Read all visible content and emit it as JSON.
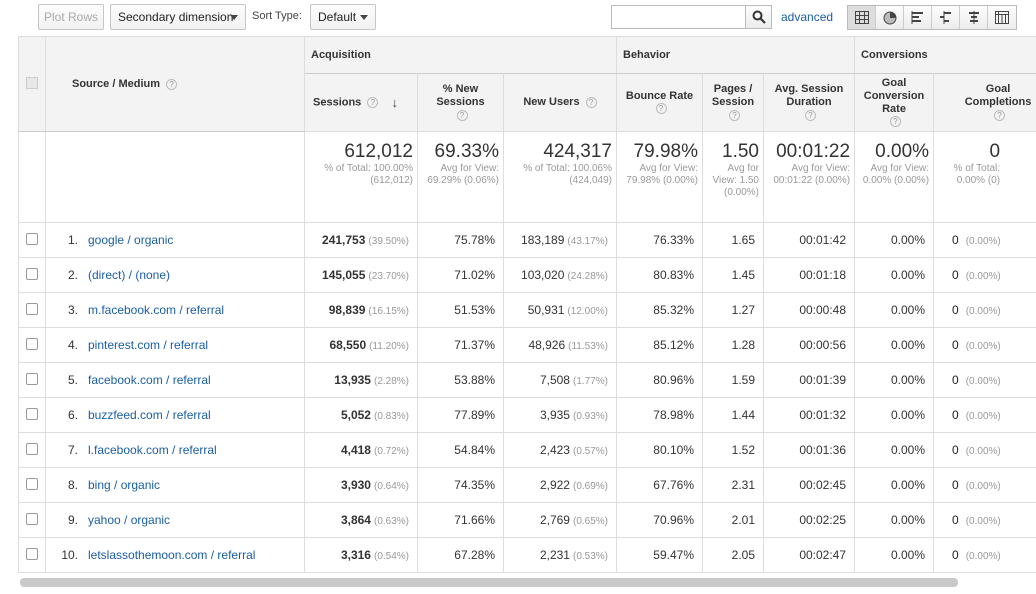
{
  "toolbar": {
    "plot_rows": "Plot Rows",
    "secondary_dimension": "Secondary dimension",
    "sort_type_label": "Sort Type:",
    "sort_type_value": "Default",
    "search_value": "",
    "advanced": "advanced",
    "view_icons": [
      "table-view-icon",
      "pie-view-icon",
      "performance-view-icon",
      "comparison-view-icon",
      "term-cloud-view-icon",
      "pivot-view-icon"
    ]
  },
  "table": {
    "groups": {
      "acquisition": "Acquisition",
      "behavior": "Behavior",
      "conversions": "Conversions"
    },
    "headers": {
      "dimension": "Source / Medium",
      "sessions": "Sessions",
      "new_sessions": "% New Sessions",
      "new_users": "New Users",
      "bounce_rate": "Bounce Rate",
      "pages_session": "Pages / Session",
      "avg_duration": "Avg. Session Duration",
      "goal_conv_rate": "Goal Conversion Rate",
      "goal_completions": "Goal Completions"
    },
    "totals": {
      "sessions": {
        "value": "612,012",
        "sub": "% of Total: 100.00% (612,012)"
      },
      "new_sessions": {
        "value": "69.33%",
        "sub": "Avg for View: 69.29% (0.06%)"
      },
      "new_users": {
        "value": "424,317",
        "sub": "% of Total: 100.06% (424,049)"
      },
      "bounce_rate": {
        "value": "79.98%",
        "sub": "Avg for View: 79.98% (0.00%)"
      },
      "pages_session": {
        "value": "1.50",
        "sub": "Avg for View: 1.50 (0.00%)"
      },
      "avg_duration": {
        "value": "00:01:22",
        "sub": "Avg for View: 00:01:22 (0.00%)"
      },
      "goal_conv_rate": {
        "value": "0.00%",
        "sub": "Avg for View: 0.00% (0.00%)"
      },
      "goal_completions": {
        "value": "0",
        "sub": "% of Total: 0.00% (0)"
      }
    },
    "rows": [
      {
        "idx": "1.",
        "source": "google / organic",
        "sessions": "241,753",
        "sessions_pct": "(39.50%)",
        "new_sessions": "75.78%",
        "new_users": "183,189",
        "new_users_pct": "(43.17%)",
        "bounce": "76.33%",
        "pages": "1.65",
        "duration": "00:01:42",
        "gcr": "0.00%",
        "gc": "0",
        "gc_pct": "(0.00%)"
      },
      {
        "idx": "2.",
        "source": "(direct) / (none)",
        "sessions": "145,055",
        "sessions_pct": "(23.70%)",
        "new_sessions": "71.02%",
        "new_users": "103,020",
        "new_users_pct": "(24.28%)",
        "bounce": "80.83%",
        "pages": "1.45",
        "duration": "00:01:18",
        "gcr": "0.00%",
        "gc": "0",
        "gc_pct": "(0.00%)"
      },
      {
        "idx": "3.",
        "source": "m.facebook.com / referral",
        "sessions": "98,839",
        "sessions_pct": "(16.15%)",
        "new_sessions": "51.53%",
        "new_users": "50,931",
        "new_users_pct": "(12.00%)",
        "bounce": "85.32%",
        "pages": "1.27",
        "duration": "00:00:48",
        "gcr": "0.00%",
        "gc": "0",
        "gc_pct": "(0.00%)"
      },
      {
        "idx": "4.",
        "source": "pinterest.com / referral",
        "sessions": "68,550",
        "sessions_pct": "(11.20%)",
        "new_sessions": "71.37%",
        "new_users": "48,926",
        "new_users_pct": "(11.53%)",
        "bounce": "85.12%",
        "pages": "1.28",
        "duration": "00:00:56",
        "gcr": "0.00%",
        "gc": "0",
        "gc_pct": "(0.00%)"
      },
      {
        "idx": "5.",
        "source": "facebook.com / referral",
        "sessions": "13,935",
        "sessions_pct": "(2.28%)",
        "new_sessions": "53.88%",
        "new_users": "7,508",
        "new_users_pct": "(1.77%)",
        "bounce": "80.96%",
        "pages": "1.59",
        "duration": "00:01:39",
        "gcr": "0.00%",
        "gc": "0",
        "gc_pct": "(0.00%)"
      },
      {
        "idx": "6.",
        "source": "buzzfeed.com / referral",
        "sessions": "5,052",
        "sessions_pct": "(0.83%)",
        "new_sessions": "77.89%",
        "new_users": "3,935",
        "new_users_pct": "(0.93%)",
        "bounce": "78.98%",
        "pages": "1.44",
        "duration": "00:01:32",
        "gcr": "0.00%",
        "gc": "0",
        "gc_pct": "(0.00%)"
      },
      {
        "idx": "7.",
        "source": "l.facebook.com / referral",
        "sessions": "4,418",
        "sessions_pct": "(0.72%)",
        "new_sessions": "54.84%",
        "new_users": "2,423",
        "new_users_pct": "(0.57%)",
        "bounce": "80.10%",
        "pages": "1.52",
        "duration": "00:01:36",
        "gcr": "0.00%",
        "gc": "0",
        "gc_pct": "(0.00%)"
      },
      {
        "idx": "8.",
        "source": "bing / organic",
        "sessions": "3,930",
        "sessions_pct": "(0.64%)",
        "new_sessions": "74.35%",
        "new_users": "2,922",
        "new_users_pct": "(0.69%)",
        "bounce": "67.76%",
        "pages": "2.31",
        "duration": "00:02:45",
        "gcr": "0.00%",
        "gc": "0",
        "gc_pct": "(0.00%)"
      },
      {
        "idx": "9.",
        "source": "yahoo / organic",
        "sessions": "3,864",
        "sessions_pct": "(0.63%)",
        "new_sessions": "71.66%",
        "new_users": "2,769",
        "new_users_pct": "(0.65%)",
        "bounce": "70.96%",
        "pages": "2.01",
        "duration": "00:02:25",
        "gcr": "0.00%",
        "gc": "0",
        "gc_pct": "(0.00%)"
      },
      {
        "idx": "10.",
        "source": "letslassothemoon.com / referral",
        "sessions": "3,316",
        "sessions_pct": "(0.54%)",
        "new_sessions": "67.28%",
        "new_users": "2,231",
        "new_users_pct": "(0.53%)",
        "bounce": "59.47%",
        "pages": "2.05",
        "duration": "00:02:47",
        "gcr": "0.00%",
        "gc": "0",
        "gc_pct": "(0.00%)"
      }
    ]
  },
  "colors": {
    "link": "#1a5ea6",
    "header_bg": "#f3f3f3",
    "border": "#dddddd"
  }
}
